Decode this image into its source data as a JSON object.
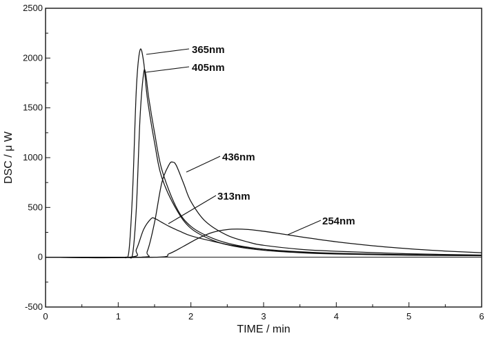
{
  "chart_data": {
    "type": "line",
    "title": "",
    "xlabel": "TIME  / min",
    "ylabel": "DSC  / μ W",
    "xlim": [
      0,
      6
    ],
    "ylim": [
      -500,
      2500
    ],
    "x_ticks": [
      "0",
      "1",
      "2",
      "3",
      "4",
      "5",
      "6"
    ],
    "y_ticks": [
      "-500",
      "0",
      "500",
      "1000",
      "1500",
      "2000",
      "2500"
    ],
    "series": [
      {
        "name": "365nm",
        "x": [
          0,
          1.0,
          1.1,
          1.15,
          1.2,
          1.25,
          1.3,
          1.35,
          1.4,
          1.5,
          1.6,
          1.8,
          2.0,
          2.3,
          2.6,
          3.0,
          3.5,
          4.0,
          5.0,
          6.0
        ],
        "y": [
          0,
          0,
          0,
          80,
          700,
          1700,
          2080,
          1960,
          1600,
          1150,
          800,
          480,
          290,
          170,
          110,
          70,
          45,
          32,
          20,
          15
        ]
      },
      {
        "name": "405nm",
        "x": [
          0,
          1.1,
          1.15,
          1.2,
          1.25,
          1.3,
          1.35,
          1.38,
          1.42,
          1.5,
          1.6,
          1.8,
          2.0,
          2.3,
          2.6,
          3.0,
          3.5,
          4.0,
          5.0,
          6.0
        ],
        "y": [
          0,
          0,
          0,
          40,
          500,
          1400,
          1850,
          1830,
          1600,
          1250,
          880,
          500,
          310,
          190,
          125,
          80,
          50,
          35,
          22,
          16
        ]
      },
      {
        "name": "436nm",
        "x": [
          0,
          1.3,
          1.4,
          1.5,
          1.6,
          1.7,
          1.75,
          1.8,
          1.9,
          2.0,
          2.2,
          2.5,
          2.8,
          3.0,
          3.5,
          4.0,
          5.0,
          6.0
        ],
        "y": [
          0,
          0,
          60,
          350,
          750,
          930,
          955,
          920,
          740,
          560,
          360,
          220,
          150,
          120,
          80,
          60,
          35,
          22
        ]
      },
      {
        "name": "313nm",
        "x": [
          0,
          1.15,
          1.25,
          1.35,
          1.45,
          1.5,
          1.6,
          1.7,
          1.85,
          2.0,
          2.3,
          2.6,
          3.0,
          3.5,
          4.0,
          5.0,
          6.0
        ],
        "y": [
          0,
          0,
          80,
          280,
          385,
          390,
          350,
          310,
          260,
          215,
          160,
          115,
          80,
          55,
          40,
          25,
          18
        ]
      },
      {
        "name": "254nm",
        "x": [
          0,
          1.5,
          1.7,
          1.9,
          2.1,
          2.3,
          2.5,
          2.7,
          2.9,
          3.2,
          3.6,
          4.0,
          4.5,
          5.0,
          5.5,
          6.0
        ],
        "y": [
          0,
          0,
          35,
          110,
          190,
          250,
          278,
          282,
          270,
          240,
          195,
          155,
          115,
          85,
          62,
          45
        ]
      }
    ],
    "annotations": [
      {
        "label": "365nm",
        "series": "365nm"
      },
      {
        "label": "405nm",
        "series": "405nm"
      },
      {
        "label": "436nm",
        "series": "436nm"
      },
      {
        "label": "313nm",
        "series": "313nm"
      },
      {
        "label": "254nm",
        "series": "254nm"
      }
    ],
    "grid": false,
    "legend": "none"
  }
}
